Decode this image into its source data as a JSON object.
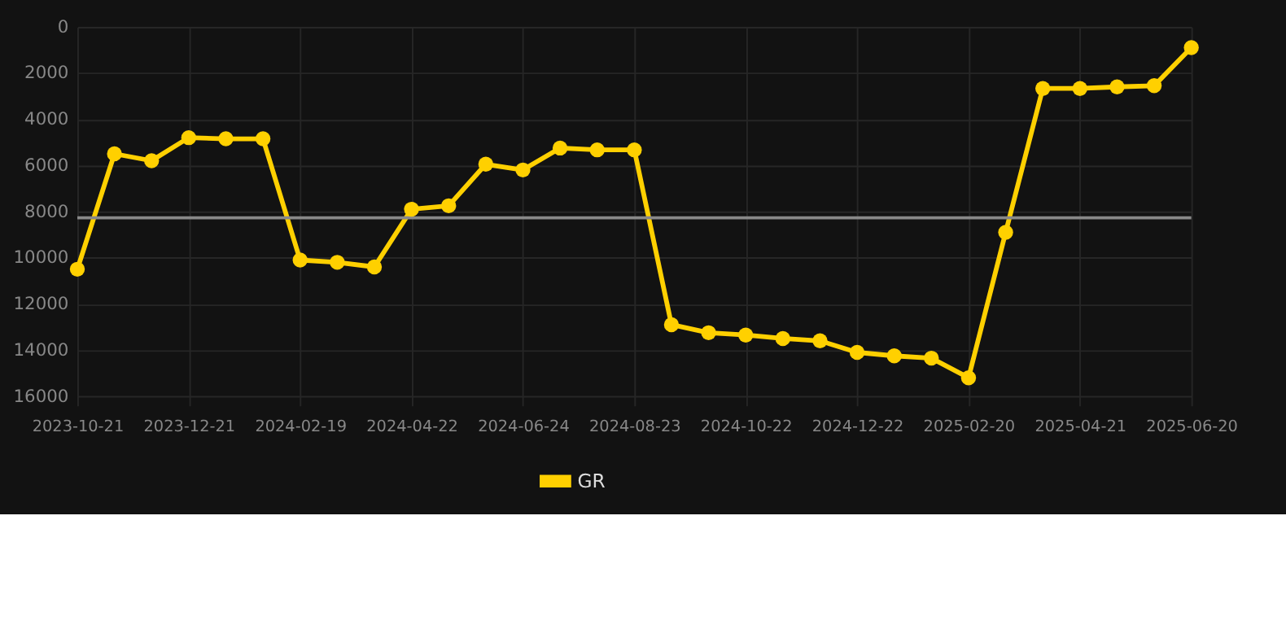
{
  "chart_data": {
    "type": "line",
    "categories": [
      "2023-10-21",
      null,
      null,
      "2023-12-21",
      null,
      null,
      "2024-02-19",
      null,
      null,
      "2024-04-22",
      null,
      null,
      "2024-06-24",
      null,
      null,
      "2024-08-23",
      null,
      null,
      "2024-10-22",
      null,
      null,
      "2024-12-22",
      null,
      null,
      "2025-02-20",
      null,
      null,
      "2025-04-21",
      null,
      null,
      "2025-06-20"
    ],
    "series": [
      {
        "name": "GR",
        "color": "#ffd000",
        "values": [
          10500,
          5500,
          5800,
          4800,
          4850,
          4850,
          10100,
          10200,
          10400,
          7900,
          7750,
          5950,
          6200,
          5250,
          5330,
          5330,
          12900,
          13250,
          13350,
          13500,
          13600,
          14100,
          14250,
          14350,
          15200,
          8900,
          2670,
          2670,
          2600,
          2550,
          900
        ]
      }
    ],
    "ylim": [
      16400,
      0
    ],
    "yticks": [
      0,
      2000,
      4000,
      6000,
      8000,
      10000,
      12000,
      14000,
      16000
    ],
    "ref_lines": [
      {
        "axis": "y",
        "value": 8270,
        "color": "#888888"
      }
    ],
    "grid": true,
    "legend": "bottom",
    "marker": "circle",
    "line_style": "solid"
  }
}
